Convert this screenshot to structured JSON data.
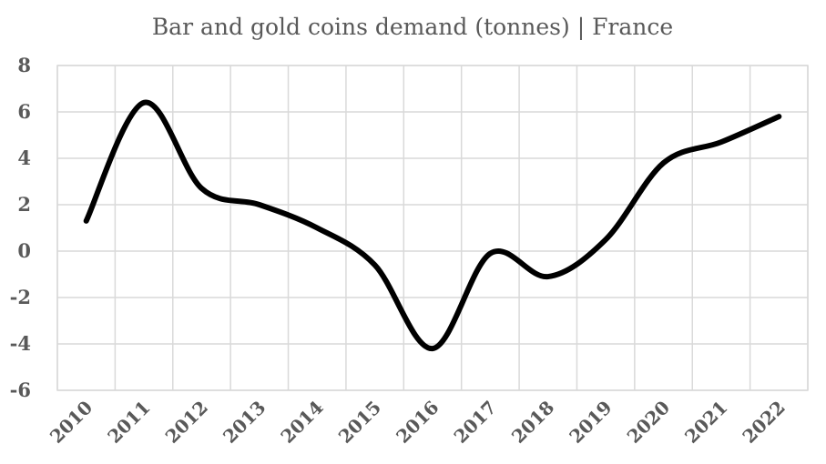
{
  "chart_data": {
    "type": "line",
    "title": "Bar and gold coins demand (tonnes) | France",
    "xlabel": "",
    "ylabel": "",
    "categories": [
      "2010",
      "2011",
      "2012",
      "2013",
      "2014",
      "2015",
      "2016",
      "2017",
      "2018",
      "2019",
      "2020",
      "2021",
      "2022"
    ],
    "series": [
      {
        "values": [
          1.3,
          6.4,
          2.7,
          2.0,
          1.0,
          -0.6,
          -4.2,
          -0.1,
          -1.1,
          0.5,
          3.8,
          4.7,
          5.8
        ],
        "color": "#000000"
      }
    ],
    "ylim": [
      -6,
      8
    ],
    "yticks": [
      8,
      6,
      4,
      2,
      0,
      -2,
      -4,
      -6
    ],
    "grid": true,
    "legend": "none",
    "colors": {
      "line": "#000000",
      "grid": "#d9d9d9",
      "text": "#595959"
    }
  }
}
